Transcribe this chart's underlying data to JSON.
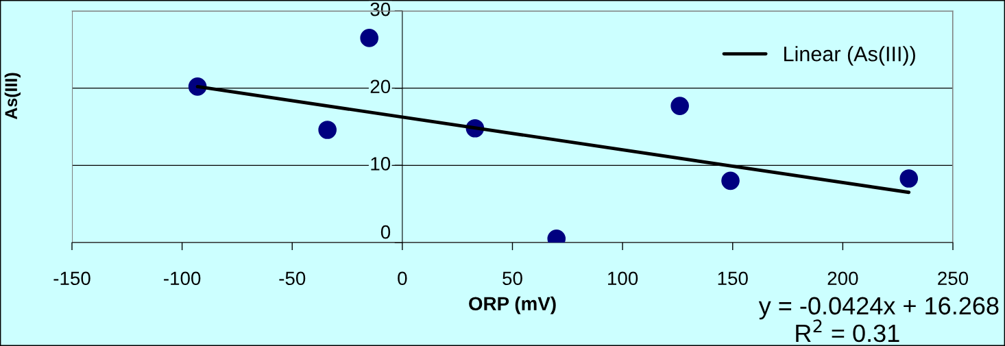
{
  "chart_data": {
    "type": "scatter",
    "xlabel": "ORP (mV)",
    "ylabel": "As(III)",
    "series": [
      {
        "color": "#000080",
        "marker": "circle",
        "x": [
          -93,
          -34,
          -15,
          33,
          70,
          126,
          149,
          230
        ],
        "values": [
          20.2,
          14.6,
          26.5,
          14.8,
          0.5,
          17.7,
          8.0,
          8.3
        ]
      },
      {
        "type": "line",
        "name": "Linear (As(III))",
        "color": "#000000",
        "marker": "none",
        "line_style": "solid",
        "x": [
          -93,
          230
        ],
        "values": [
          20.2,
          6.5
        ]
      }
    ],
    "xlim": [
      -150,
      250
    ],
    "xticks": [
      -150,
      -100,
      -50,
      0,
      50,
      100,
      150,
      200,
      250
    ],
    "ylim": [
      0,
      30
    ],
    "yticks": [
      0,
      10,
      20,
      30
    ],
    "grid": "y",
    "legend": "top right",
    "annotations": [
      "y = -0.0424x + 16.268",
      "R$^{2}$ = 0.31"
    ]
  }
}
